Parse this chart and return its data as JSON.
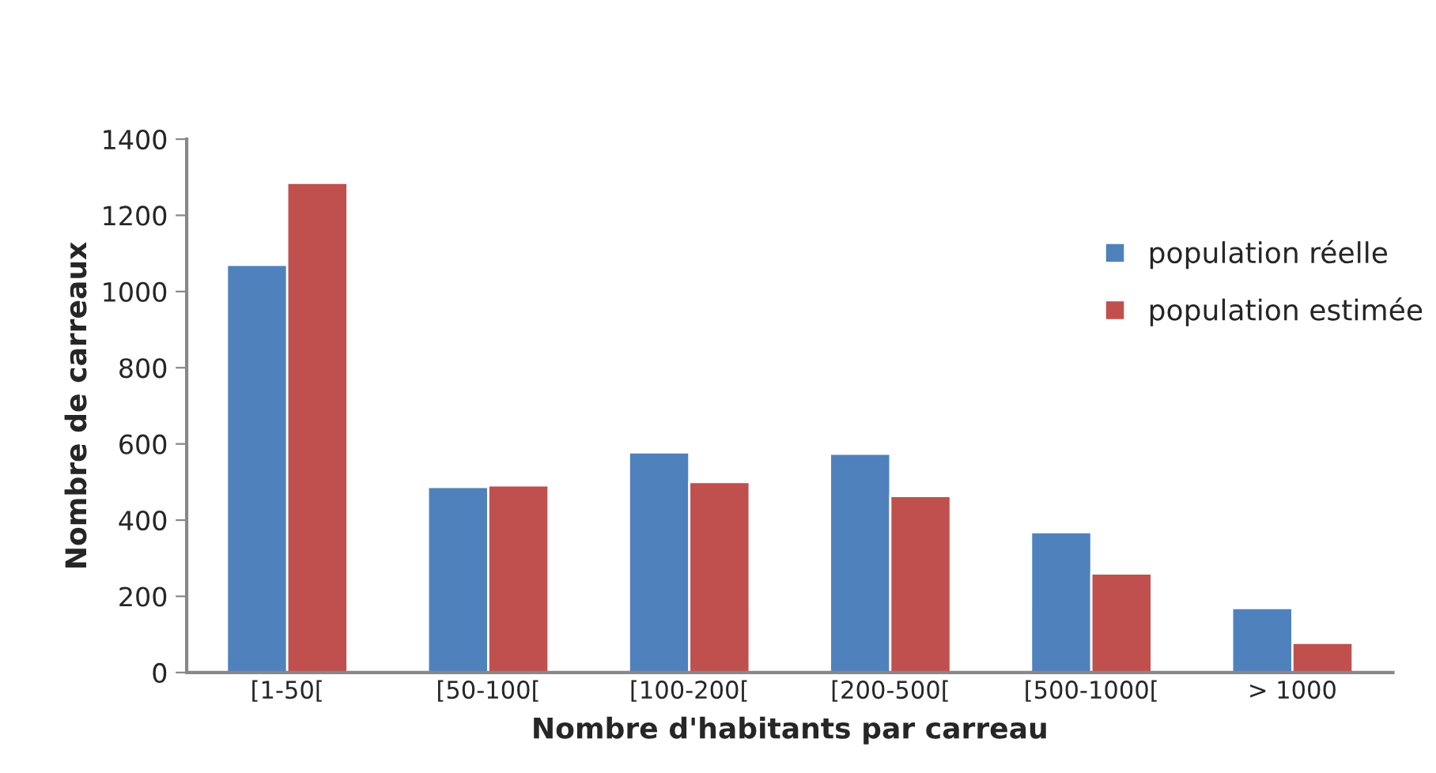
{
  "chart_data": {
    "type": "bar",
    "xlabel": "Nombre d'habitants par carreau",
    "ylabel": "Nombre de carreaux",
    "categories": [
      "[1-50[",
      "[50-100[",
      "[100-200[",
      "[200-500[",
      "[500-1000[",
      "> 1000"
    ],
    "series": [
      {
        "name": "population réelle",
        "color": "#4f81bd",
        "values": [
          1070,
          487,
          578,
          574,
          368,
          169
        ]
      },
      {
        "name": "population estimée",
        "color": "#c0504d",
        "values": [
          1285,
          491,
          500,
          463,
          260,
          78
        ]
      }
    ],
    "ylim": [
      0,
      1400
    ],
    "yticks": [
      0,
      200,
      400,
      600,
      800,
      1000,
      1200,
      1400
    ],
    "grid": false,
    "legend": "right"
  }
}
